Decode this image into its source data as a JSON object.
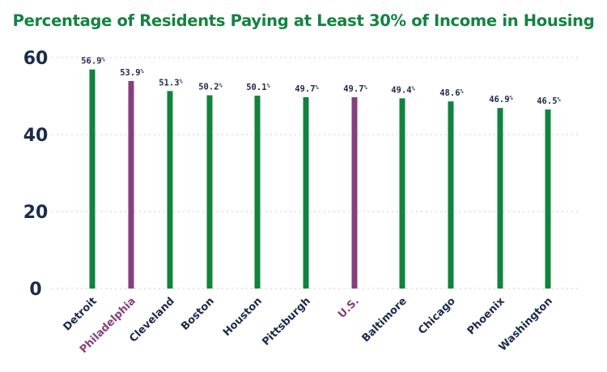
{
  "chart_data": {
    "type": "bar",
    "title": "Percentage of Residents Paying at Least 30% of Income in Housing",
    "xlabel": "",
    "ylabel": "",
    "ylim": [
      0,
      60
    ],
    "yticks": [
      "0",
      "20",
      "40",
      "60"
    ],
    "grid": true,
    "categories": [
      "Detroit",
      "Philadelphia",
      "Cleveland",
      "Boston",
      "Houston",
      "Pittsburgh",
      "U.S.",
      "Baltimore",
      "Chicago",
      "Phoenix",
      "Washington"
    ],
    "values": [
      56.9,
      53.9,
      51.3,
      50.2,
      50.1,
      49.7,
      49.7,
      49.4,
      48.6,
      46.9,
      46.5
    ],
    "value_labels": [
      "56.9%",
      "53.9%",
      "51.3%",
      "50.2%",
      "50.1%",
      "49.7%",
      "49.7%",
      "49.4%",
      "48.6%",
      "46.9%",
      "46.5%"
    ],
    "highlighted": [
      "Philadelphia",
      "U.S."
    ],
    "colors": {
      "default_bar": "#12833f",
      "highlight_bar": "#863f7b",
      "title": "#12833f",
      "axis_text": "#1c2b4a",
      "grid": "#d6d6d6"
    }
  }
}
